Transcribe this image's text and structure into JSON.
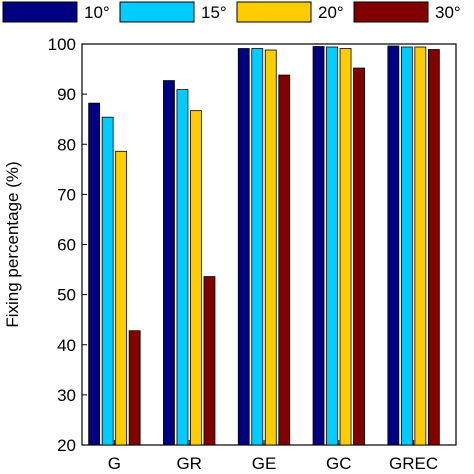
{
  "chart_data": {
    "type": "bar",
    "categories": [
      "G",
      "GR",
      "GE",
      "GC",
      "GREC"
    ],
    "series": [
      {
        "name": "10°",
        "color": "#000080",
        "values": [
          88.2,
          92.7,
          99.1,
          99.5,
          99.6
        ]
      },
      {
        "name": "15°",
        "color": "#00CCFF",
        "values": [
          85.4,
          90.9,
          99.1,
          99.4,
          99.4
        ]
      },
      {
        "name": "20°",
        "color": "#FFCC00",
        "values": [
          78.6,
          86.7,
          98.8,
          99.1,
          99.4
        ]
      },
      {
        "name": "30°",
        "color": "#800000",
        "values": [
          42.8,
          53.6,
          93.8,
          95.2,
          98.9
        ]
      }
    ],
    "ylabel": "Fixing percentage (%)",
    "ylim": [
      20,
      100
    ],
    "yticks": [
      20,
      30,
      40,
      50,
      60,
      70,
      80,
      90,
      100
    ],
    "legend_position": "top",
    "grid": false
  }
}
